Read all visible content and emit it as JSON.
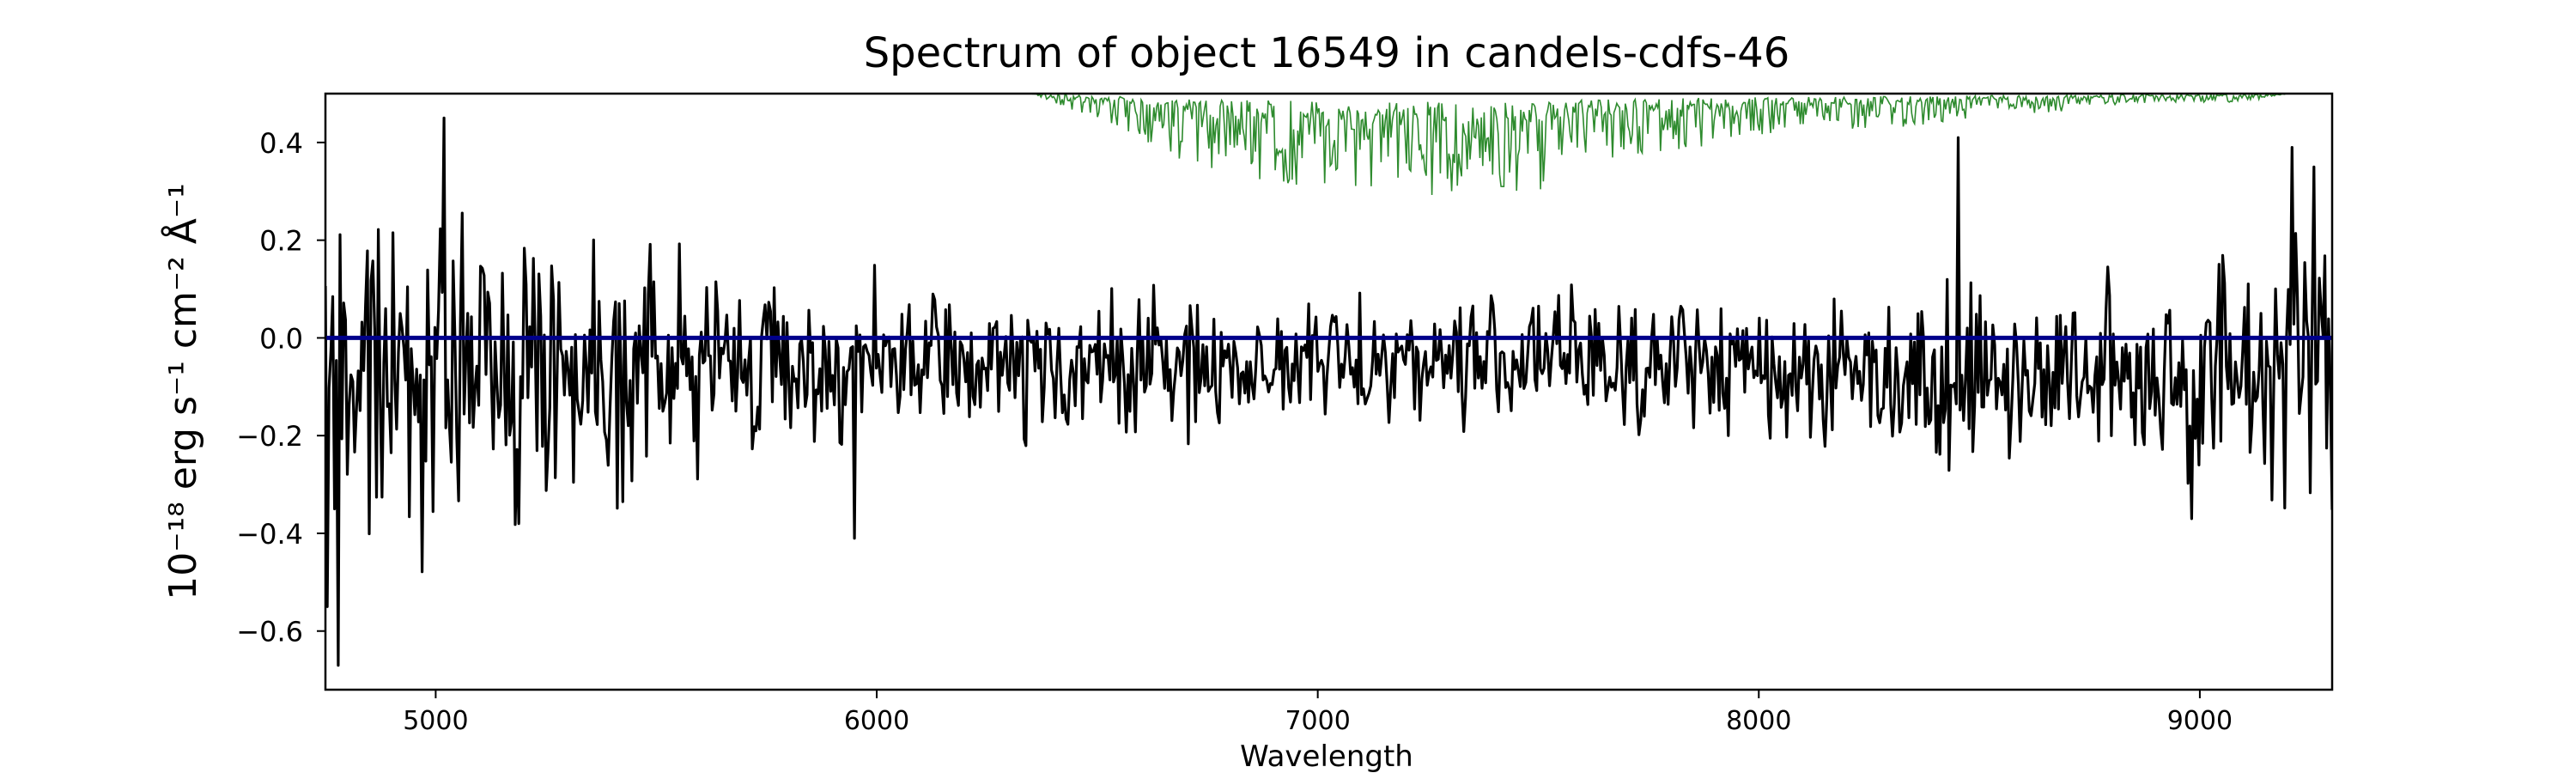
{
  "chart_data": {
    "type": "line",
    "title": "Spectrum of object 16549 in candels-cdfs-46",
    "xlabel": "Wavelength",
    "ylabel": "10⁻¹⁸ erg s⁻¹ cm⁻² Å⁻¹",
    "xlim": [
      4750,
      9300
    ],
    "ylim": [
      -0.72,
      0.5
    ],
    "x_ticks": [
      5000,
      6000,
      7000,
      8000,
      9000
    ],
    "y_ticks": [
      -0.6,
      -0.4,
      -0.2,
      0.0,
      0.2,
      0.4
    ],
    "x_tick_labels": [
      "5000",
      "6000",
      "7000",
      "8000",
      "9000"
    ],
    "y_tick_labels": [
      "−0.6",
      "−0.4",
      "−0.2",
      "0.0",
      "0.2",
      "0.4"
    ],
    "grid": false,
    "legend": "none",
    "series": [
      {
        "color": "#000000",
        "style": "noisy",
        "x_start": 4750,
        "x_end": 9300,
        "n": 1100,
        "baseline": [
          [
            4750,
            -0.05
          ],
          [
            6500,
            -0.06
          ],
          [
            7500,
            -0.04
          ],
          [
            8500,
            -0.08
          ],
          [
            9300,
            -0.06
          ]
        ],
        "sigma": [
          [
            4750,
            0.22
          ],
          [
            5300,
            0.16
          ],
          [
            6000,
            0.1
          ],
          [
            7000,
            0.08
          ],
          [
            8000,
            0.1
          ],
          [
            8600,
            0.12
          ],
          [
            9300,
            0.18
          ]
        ],
        "x": [
          4755,
          4770,
          4780,
          5020,
          5190,
          5950,
          8450,
          8980,
          9000,
          9210,
          9260
        ],
        "y": [
          -0.55,
          -0.35,
          -0.67,
          0.45,
          -0.38,
          -0.41,
          0.41,
          -0.37,
          -0.26,
          0.39,
          0.35
        ]
      },
      {
        "color": "#00008b",
        "style": "flat",
        "x": [
          4750,
          9300
        ],
        "y": [
          0.0,
          0.0
        ]
      },
      {
        "color": "#2e8b2e",
        "style": "sky",
        "x_start": 6350,
        "x_end": 9200,
        "x": [
          6350,
          6500,
          6700,
          6850,
          7000,
          7150,
          7250,
          7400,
          7500,
          7600,
          7800,
          8000,
          8300,
          8500,
          8700,
          8900,
          9100,
          9200
        ],
        "y": [
          0.5,
          0.47,
          0.42,
          0.4,
          0.39,
          0.39,
          0.38,
          0.39,
          0.38,
          0.41,
          0.43,
          0.45,
          0.46,
          0.47,
          0.48,
          0.49,
          0.49,
          0.5
        ]
      }
    ]
  }
}
